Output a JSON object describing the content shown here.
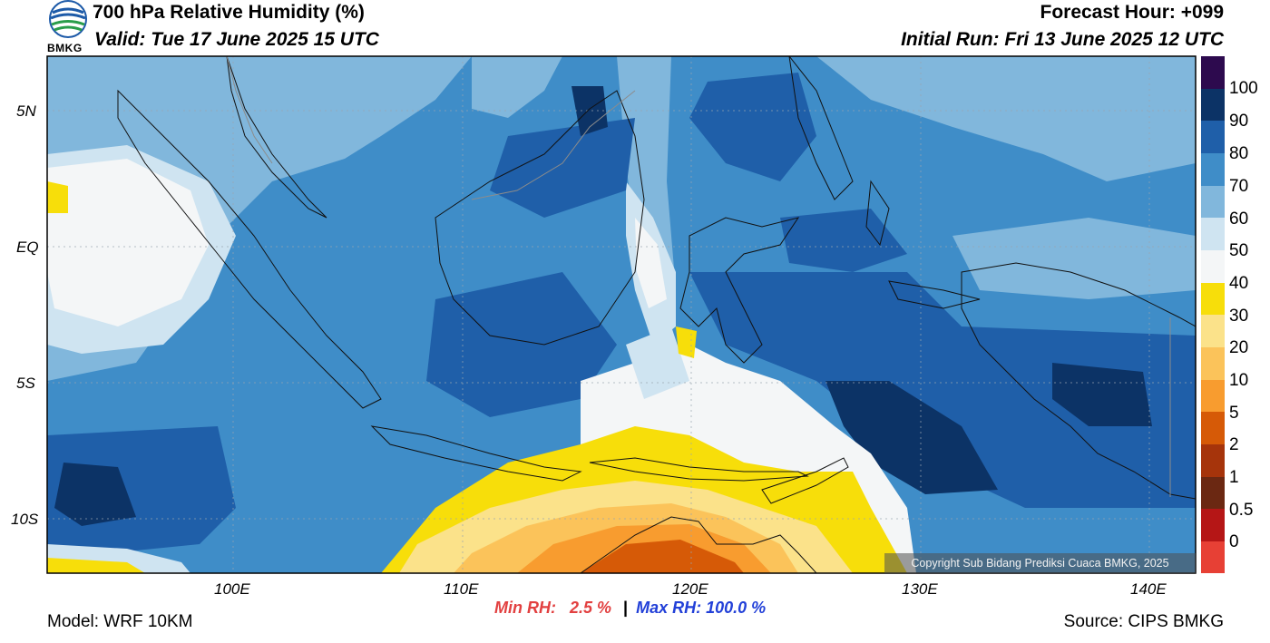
{
  "header": {
    "title": "700 hPa Relative Humidity (%)",
    "valid": "Valid: Tue 17 June 2025 15 UTC",
    "forecast_hour": "Forecast Hour: +099",
    "initial_run": "Initial Run: Fri 13 June 2025 12 UTC"
  },
  "logo": {
    "text": "BMKG",
    "icon": "bmkg-logo-icon"
  },
  "axes": {
    "lat_labels": [
      "5N",
      "EQ",
      "5S",
      "10S"
    ],
    "lon_labels": [
      "100E",
      "110E",
      "120E",
      "130E",
      "140E"
    ]
  },
  "colorbar": {
    "labels": [
      "100",
      "90",
      "80",
      "70",
      "60",
      "50",
      "40",
      "30",
      "20",
      "10",
      "5",
      "2",
      "1",
      "0.5",
      "0"
    ],
    "colors": [
      "#2d0a4e",
      "#0c3366",
      "#1f5fa9",
      "#3f8dc8",
      "#81b7dc",
      "#cfe4f1",
      "#f4f6f7",
      "#f7de0a",
      "#fbe28a",
      "#fbc35a",
      "#f89c2f",
      "#d65a07",
      "#a6340b",
      "#6b2812",
      "#b51616",
      "#e74035"
    ]
  },
  "stats": {
    "min_label": "Min RH:",
    "min_value": "2.5 %",
    "separator": "|",
    "max_text": "Max RH: 100.0 %",
    "min_color": "#e24040",
    "max_color": "#2240d8"
  },
  "copyright": "Copyright Sub Bidang Prediksi Cuaca BMKG, 2025",
  "footer": {
    "model": "Model: WRF 10KM",
    "source": "Source: CIPS BMKG"
  }
}
